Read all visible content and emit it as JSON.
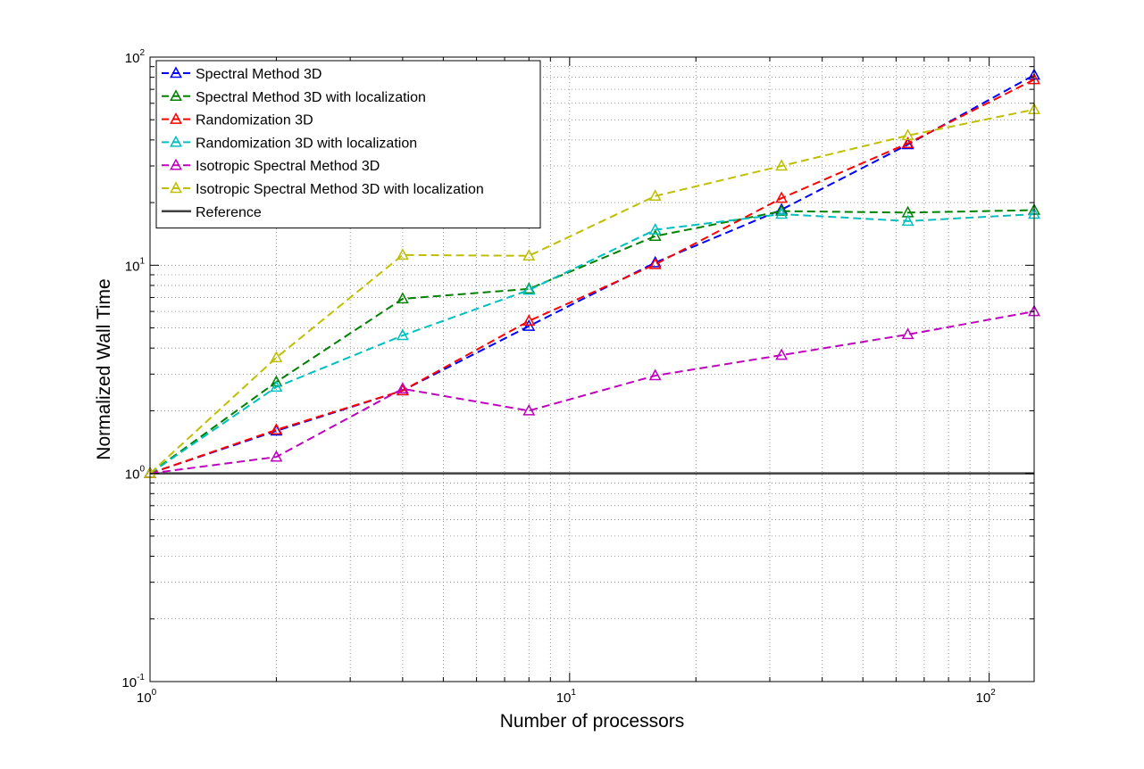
{
  "chart_data": {
    "type": "line",
    "xlabel": "Number of processors",
    "ylabel": "Normalized Wall Time",
    "xscale": "log",
    "yscale": "log",
    "xlim": [
      1,
      128
    ],
    "ylim": [
      0.1,
      100
    ],
    "grid": true,
    "legend_position": "top-left",
    "x_ticks": [
      {
        "base": "10",
        "exp": "0"
      },
      {
        "base": "10",
        "exp": "1"
      },
      {
        "base": "10",
        "exp": "2"
      }
    ],
    "y_ticks": [
      {
        "base": "10",
        "exp": "-1"
      },
      {
        "base": "10",
        "exp": "0"
      },
      {
        "base": "10",
        "exp": "1"
      },
      {
        "base": "10",
        "exp": "2"
      }
    ],
    "x": [
      1,
      2,
      4,
      8,
      16,
      32,
      64,
      128
    ],
    "series": [
      {
        "name": "Spectral Method 3D",
        "color": "#0000ff",
        "style": "dashed",
        "marker": "triangle",
        "values": [
          1.0,
          1.6,
          2.5,
          5.1,
          10.3,
          18.5,
          38,
          82
        ]
      },
      {
        "name": "Spectral Method 3D with localization",
        "color": "#008000",
        "style": "dashed",
        "marker": "triangle",
        "values": [
          1.0,
          2.75,
          6.9,
          7.7,
          13.8,
          18.2,
          17.9,
          18.4
        ]
      },
      {
        "name": "Randomization 3D",
        "color": "#ff0000",
        "style": "dashed",
        "marker": "triangle",
        "values": [
          1.0,
          1.62,
          2.5,
          5.4,
          10.1,
          21,
          38.5,
          78
        ]
      },
      {
        "name": "Randomization 3D with localization",
        "color": "#00bfbf",
        "style": "dashed",
        "marker": "triangle",
        "values": [
          1.0,
          2.6,
          4.6,
          7.6,
          14.8,
          17.6,
          16.3,
          17.6
        ]
      },
      {
        "name": "Isotropic Spectral Method 3D",
        "color": "#bf00bf",
        "style": "dashed",
        "marker": "triangle",
        "values": [
          1.0,
          1.2,
          2.55,
          2.0,
          2.95,
          3.7,
          4.65,
          6.0
        ]
      },
      {
        "name": "Isotropic Spectral Method 3D with localization",
        "color": "#bfbf00",
        "style": "dashed",
        "marker": "triangle",
        "values": [
          1.0,
          3.6,
          11.2,
          11.1,
          21.5,
          30,
          42,
          56
        ]
      },
      {
        "name": "Reference",
        "color": "#404040",
        "style": "solid",
        "marker": "none",
        "values": [
          1,
          1,
          1,
          1,
          1,
          1,
          1,
          1
        ]
      }
    ]
  }
}
